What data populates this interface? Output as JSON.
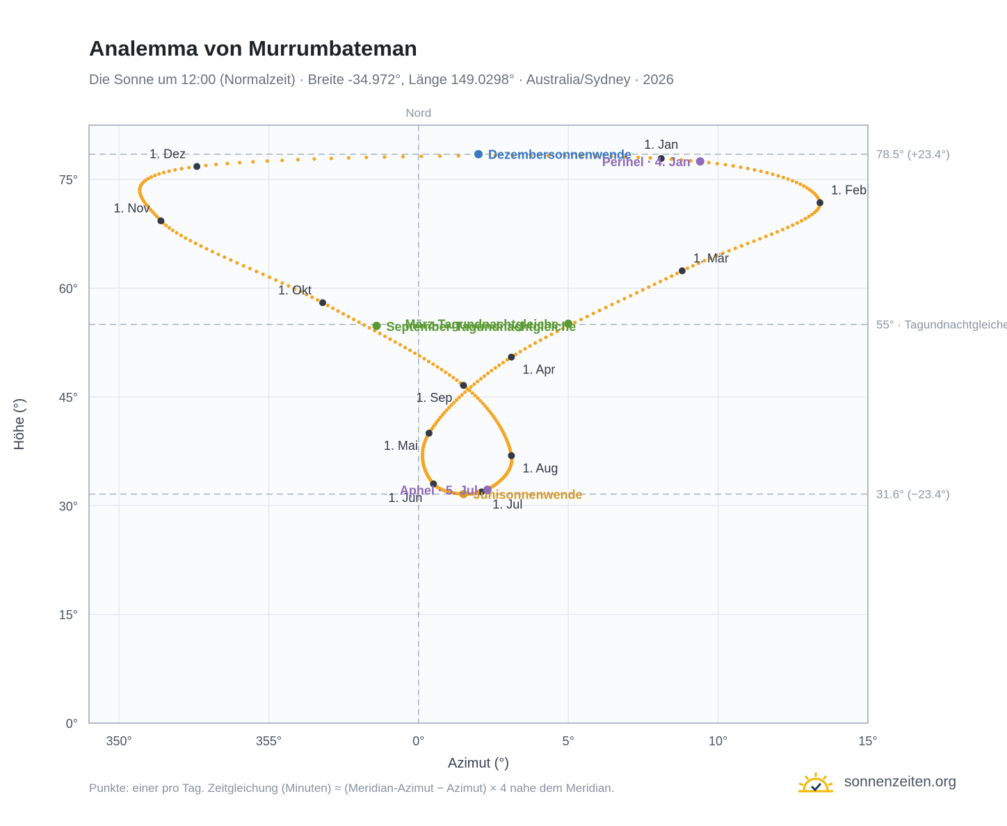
{
  "title": "Analemma von Murrumbateman",
  "subtitle": "Die Sonne um 12:00 (Normalzeit) · Breite -34.972°, Länge 149.0298° · Australia/Sydney · 2026",
  "footnote": "Punkte: einer pro Tag. Zeitgleichung (Minuten) ≈ (Meridian-Azimut − Azimut) × 4 nahe dem Meridian.",
  "brand": {
    "text": "sonnenzeiten.org",
    "icon": "sun-logo-icon",
    "color": "#f2b705"
  },
  "chart_data": {
    "type": "scatter",
    "xlabel": "Azimut (°)",
    "ylabel": "Höhe (°)",
    "xlim": [
      349,
      15
    ],
    "ylim": [
      0,
      82.5
    ],
    "x_ticks": [
      {
        "value": 350,
        "label": "350°"
      },
      {
        "value": 355,
        "label": "355°"
      },
      {
        "value": 0,
        "label": "0°"
      },
      {
        "value": 5,
        "label": "5°"
      },
      {
        "value": 10,
        "label": "10°"
      },
      {
        "value": 15,
        "label": "15°"
      }
    ],
    "y_ticks": [
      {
        "value": 0,
        "label": "0°"
      },
      {
        "value": 15,
        "label": "15°"
      },
      {
        "value": 30,
        "label": "30°"
      },
      {
        "value": 45,
        "label": "45°"
      },
      {
        "value": 60,
        "label": "60°"
      },
      {
        "value": 75,
        "label": "75°"
      }
    ],
    "grid": true,
    "meridian": {
      "azimuth": 0,
      "label": "Nord"
    },
    "reference_lines": [
      {
        "altitude": 78.5,
        "label": "78.5° (+23.4°)"
      },
      {
        "altitude": 55,
        "label": "55° · Tagundnachtgleiche"
      },
      {
        "altitude": 31.6,
        "label": "31.6° (−23.4°)"
      }
    ],
    "colors": {
      "curve": "#f5a623",
      "month_marker": "#333a44",
      "december_solstice": "#3b78c3",
      "june_solstice": "#d89a2b",
      "equinox": "#5a9a32",
      "apsis": "#8f6bb8",
      "reference": "#a7b3bf"
    },
    "analemma_anchors": [
      {
        "date": "1. Jan",
        "azimuth": 8.1,
        "altitude": 77.9
      },
      {
        "date": "1. Feb",
        "azimuth": 13.4,
        "altitude": 71.8
      },
      {
        "date": "1. Mär",
        "azimuth": 8.8,
        "altitude": 62.4
      },
      {
        "date": "1. Apr",
        "azimuth": 3.1,
        "altitude": 50.5
      },
      {
        "date": "1. Mai",
        "azimuth": 0.35,
        "altitude": 40.0
      },
      {
        "date": "1. Jun",
        "azimuth": 0.5,
        "altitude": 33.0
      },
      {
        "date": "1. Jul",
        "azimuth": 2.1,
        "altitude": 31.9
      },
      {
        "date": "1. Aug",
        "azimuth": 3.1,
        "altitude": 36.9
      },
      {
        "date": "1. Sep",
        "azimuth": 1.5,
        "altitude": 46.6
      },
      {
        "date": "1. Okt",
        "azimuth": 356.8,
        "altitude": 58.0
      },
      {
        "date": "1. Nov",
        "azimuth": 351.4,
        "altitude": 69.3
      },
      {
        "date": "1. Dez",
        "azimuth": 352.6,
        "altitude": 76.8
      }
    ],
    "month_markers": [
      {
        "label": "1. Jan",
        "azimuth": 8.1,
        "altitude": 77.9,
        "label_pos": "above"
      },
      {
        "label": "1. Feb",
        "azimuth": 13.4,
        "altitude": 71.8,
        "label_pos": "right-above"
      },
      {
        "label": "1. Mär",
        "azimuth": 8.8,
        "altitude": 62.4,
        "label_pos": "right-above"
      },
      {
        "label": "1. Apr",
        "azimuth": 3.1,
        "altitude": 50.5,
        "label_pos": "right-below"
      },
      {
        "label": "1. Mai",
        "azimuth": 0.35,
        "altitude": 40.0,
        "label_pos": "left-below"
      },
      {
        "label": "1. Jun",
        "azimuth": 0.5,
        "altitude": 33.0,
        "label_pos": "left-far-below"
      },
      {
        "label": "1. Jul",
        "azimuth": 2.1,
        "altitude": 31.9,
        "label_pos": "right-below"
      },
      {
        "label": "1. Aug",
        "azimuth": 3.1,
        "altitude": 36.9,
        "label_pos": "right-below"
      },
      {
        "label": "1. Sep",
        "azimuth": 1.5,
        "altitude": 46.6,
        "label_pos": "left-below"
      },
      {
        "label": "1. Okt",
        "azimuth": 356.8,
        "altitude": 58.0,
        "label_pos": "left-above"
      },
      {
        "label": "1. Nov",
        "azimuth": 351.4,
        "altitude": 69.3,
        "label_pos": "left-above"
      },
      {
        "label": "1. Dez",
        "azimuth": 352.6,
        "altitude": 76.8,
        "label_pos": "left-above"
      }
    ],
    "events": [
      {
        "label": "Dezembersonnenwende",
        "azimuth": 2.0,
        "altitude": 78.5,
        "color_key": "december_solstice",
        "label_pos": "right"
      },
      {
        "label": "Perihel · 4. Jan",
        "azimuth": 9.4,
        "altitude": 77.5,
        "color_key": "apsis",
        "label_pos": "left"
      },
      {
        "label": "März-Tagundnachtgleiche",
        "azimuth": 5.0,
        "altitude": 55.1,
        "color_key": "equinox",
        "label_pos": "left"
      },
      {
        "label": "September-Tagundnachtgleiche",
        "azimuth": 358.6,
        "altitude": 54.8,
        "color_key": "equinox",
        "label_pos": "right"
      },
      {
        "label": "Junisonnenwende",
        "azimuth": 1.5,
        "altitude": 31.6,
        "color_key": "june_solstice",
        "label_pos": "right"
      },
      {
        "label": "Aphel · 5. Jul",
        "azimuth": 2.3,
        "altitude": 32.2,
        "color_key": "apsis",
        "label_pos": "left"
      }
    ]
  }
}
